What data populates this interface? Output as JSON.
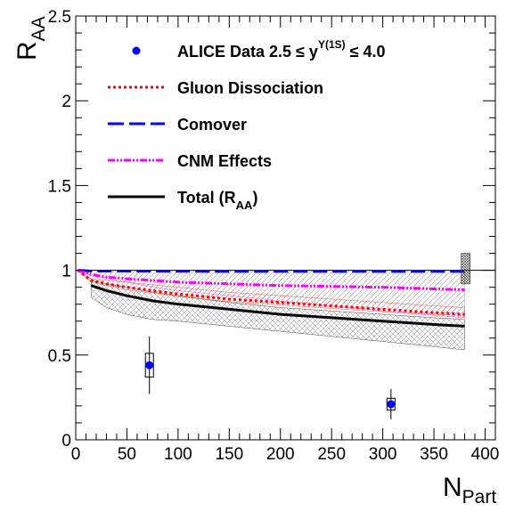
{
  "chart_data": {
    "type": "line",
    "xlabel": "N",
    "xlabel_sub": "Part",
    "ylabel": "R",
    "ylabel_sub": "AA",
    "xlim": [
      0,
      410
    ],
    "ylim": [
      0,
      2.5
    ],
    "x_ticks": [
      0,
      50,
      100,
      150,
      200,
      250,
      300,
      350,
      400
    ],
    "y_ticks": [
      0,
      0.5,
      1,
      1.5,
      2,
      2.5
    ],
    "x_tick_labels": [
      "0",
      "50",
      "100",
      "150",
      "200",
      "250",
      "300",
      "350",
      "400"
    ],
    "y_tick_labels": [
      "0",
      "0.5",
      "1",
      "1.5",
      "2",
      "2.5"
    ],
    "grid": false,
    "legend_position": "top",
    "reference_line": 1.0,
    "legend": {
      "data": "ALICE Data 2.5 ≤ y",
      "data_sup": "Υ(1S)",
      "data_tail": " ≤ 4.0",
      "gluon": "Gluon Dissociation",
      "comover": "Comover",
      "cnm": "CNM Effects",
      "total_prefix": "Total (R",
      "total_sub": "AA",
      "total_suffix": ")"
    },
    "data_points": {
      "name": "ALICE Data 2.5 ≤ y Υ(1S) ≤ 4.0",
      "color": "#0000ff",
      "points": [
        {
          "x": 72,
          "y": 0.44,
          "stat_err": 0.17,
          "syst_err": 0.07
        },
        {
          "x": 308,
          "y": 0.21,
          "stat_err": 0.09,
          "syst_err": 0.035
        }
      ]
    },
    "global_uncertainty": {
      "x": 381,
      "y_low": 0.92,
      "y_high": 1.1
    },
    "series": [
      {
        "name": "Gluon Dissociation",
        "color": "#ff0000",
        "style": "dotted",
        "x": [
          2,
          15,
          30,
          50,
          75,
          100,
          150,
          200,
          250,
          300,
          350,
          380
        ],
        "y": [
          1.0,
          0.94,
          0.92,
          0.9,
          0.88,
          0.86,
          0.83,
          0.81,
          0.79,
          0.77,
          0.75,
          0.74
        ],
        "band_upper": [
          1.0,
          0.95,
          0.94,
          0.93,
          0.915,
          0.9,
          0.87,
          0.85,
          0.83,
          0.81,
          0.79,
          0.78
        ],
        "band_lower": [
          1.0,
          0.93,
          0.91,
          0.885,
          0.865,
          0.845,
          0.815,
          0.795,
          0.775,
          0.755,
          0.735,
          0.72
        ]
      },
      {
        "name": "Comover",
        "color": "#0000ff",
        "style": "dashed",
        "x": [
          2,
          15,
          30,
          50,
          100,
          150,
          200,
          250,
          300,
          350,
          380
        ],
        "y": [
          1.0,
          0.995,
          0.995,
          0.995,
          0.994,
          0.993,
          0.993,
          0.993,
          0.993,
          0.993,
          0.993
        ]
      },
      {
        "name": "CNM Effects",
        "color": "#ff00ff",
        "style": "dashdot",
        "x": [
          2,
          15,
          30,
          50,
          75,
          100,
          150,
          200,
          250,
          300,
          350,
          380
        ],
        "y": [
          1.0,
          0.975,
          0.96,
          0.95,
          0.94,
          0.93,
          0.92,
          0.91,
          0.905,
          0.9,
          0.89,
          0.885
        ],
        "band_upper": [
          1.0,
          1.0,
          1.0,
          1.0,
          1.0,
          1.0,
          1.0,
          1.0,
          1.0,
          1.0,
          1.0,
          1.0
        ],
        "band_lower": [
          1.0,
          0.97,
          0.95,
          0.93,
          0.9,
          0.88,
          0.85,
          0.82,
          0.79,
          0.76,
          0.74,
          0.73
        ]
      },
      {
        "name": "Total (RAA)",
        "color": "#000000",
        "style": "solid",
        "x": [
          15,
          30,
          50,
          75,
          100,
          150,
          200,
          250,
          300,
          350,
          380
        ],
        "y": [
          0.91,
          0.88,
          0.85,
          0.82,
          0.8,
          0.77,
          0.74,
          0.72,
          0.7,
          0.68,
          0.67
        ],
        "band_upper": [
          0.94,
          0.92,
          0.9,
          0.87,
          0.85,
          0.81,
          0.78,
          0.76,
          0.74,
          0.72,
          0.71
        ],
        "band_lower": [
          0.84,
          0.78,
          0.74,
          0.71,
          0.7,
          0.67,
          0.64,
          0.61,
          0.58,
          0.55,
          0.53
        ]
      }
    ]
  }
}
